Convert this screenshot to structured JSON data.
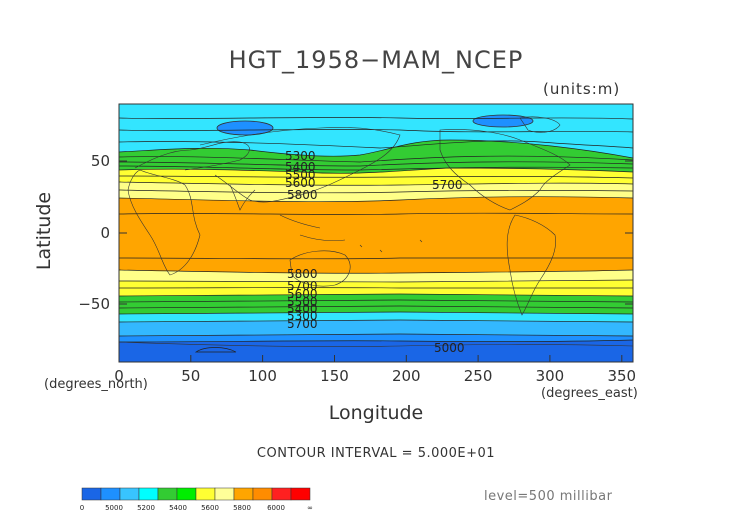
{
  "title": "HGT_1958−MAM_NCEP",
  "units": "(units:m)",
  "ylabel": "Latitude",
  "xlabel": "Longitude",
  "ylabel_units": "(degrees_north)",
  "xlabel_units": "(degrees_east)",
  "contour_interval": "CONTOUR INTERVAL = 5.000E+01",
  "level": "level=500 millibar",
  "y_ticks": [
    "50",
    "0",
    "−50"
  ],
  "x_ticks": [
    "0",
    "50",
    "100",
    "150",
    "200",
    "250",
    "300",
    "350"
  ],
  "contour_labels": [
    "5300",
    "5400",
    "5500",
    "5600",
    "5800",
    "5700",
    "5800",
    "5700",
    "5600",
    "5500",
    "5400",
    "5300",
    "5200",
    "5700",
    "5000"
  ],
  "colorbar": {
    "ticks": [
      "0",
      "5000",
      "5200",
      "5400",
      "5600",
      "5800",
      "6000",
      "∞"
    ],
    "colors": [
      "#1a66e6",
      "#1e90ff",
      "#38c4ff",
      "#00ffff",
      "#33cc33",
      "#00ee00",
      "#ffff33",
      "#ffff99",
      "#ffa500",
      "#ff8c00",
      "#ff2020",
      "#ff0000"
    ]
  },
  "chart_data": {
    "type": "heatmap",
    "title": "HGT_1958−MAM_NCEP",
    "xlabel": "Longitude",
    "ylabel": "Latitude",
    "xlim": [
      0,
      357.5
    ],
    "ylim": [
      -90,
      90
    ],
    "bands": [
      {
        "lat_from": 90,
        "lat_to": 60,
        "value_range": "5200-5400",
        "color": "#33e5ff"
      },
      {
        "lat_from": 60,
        "lat_to": 45,
        "value_range": "5400-5600",
        "color": "#33cc33"
      },
      {
        "lat_from": 45,
        "lat_to": 25,
        "value_range": "5600-5800",
        "color": "#ffff33"
      },
      {
        "lat_from": 25,
        "lat_to": -25,
        "value_range": "5800-6000",
        "color": "#ffa500"
      },
      {
        "lat_from": -25,
        "lat_to": -45,
        "value_range": "5600-5800",
        "color": "#ffff33"
      },
      {
        "lat_from": -45,
        "lat_to": -60,
        "value_range": "5400-5600",
        "color": "#33cc33"
      },
      {
        "lat_from": -60,
        "lat_to": -75,
        "value_range": "5200-5400",
        "color": "#33e5ff"
      },
      {
        "lat_from": -75,
        "lat_to": -90,
        "value_range": "5000-5200",
        "color": "#1e90ff"
      }
    ],
    "grid": false
  }
}
